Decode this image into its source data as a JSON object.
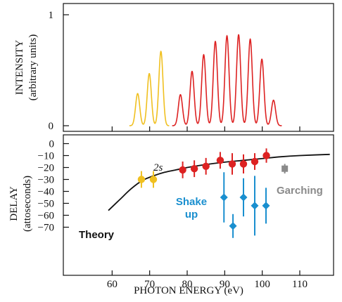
{
  "colors": {
    "yellow": "#f0c020",
    "red": "#dd2222",
    "blue": "#1a8fcf",
    "gray": "#8a8a8a",
    "black": "#111111"
  },
  "chart_data": [
    {
      "type": "line",
      "panel": "top",
      "ylabel": "INTENSITY",
      "ylabel2": "(arbitrary units)",
      "yticks": [
        "0",
        "1"
      ],
      "xlim": [
        47,
        119
      ],
      "ylim": [
        0,
        1
      ],
      "series": [
        {
          "color": "yellow",
          "peaks": [
            {
              "x": 66.8,
              "y": 0.29
            },
            {
              "x": 69.9,
              "y": 0.47
            },
            {
              "x": 73.0,
              "y": 0.67
            }
          ]
        },
        {
          "color": "red",
          "peaks": [
            {
              "x": 78.2,
              "y": 0.28
            },
            {
              "x": 81.3,
              "y": 0.49
            },
            {
              "x": 84.4,
              "y": 0.64
            },
            {
              "x": 87.5,
              "y": 0.76
            },
            {
              "x": 90.6,
              "y": 0.81
            },
            {
              "x": 93.7,
              "y": 0.82
            },
            {
              "x": 96.8,
              "y": 0.78
            },
            {
              "x": 99.9,
              "y": 0.6
            },
            {
              "x": 103.0,
              "y": 0.23
            }
          ]
        }
      ]
    },
    {
      "type": "scatter",
      "panel": "bottom",
      "xlabel": "PHOTON ENERGY (eV)",
      "ylabel": "DELAY",
      "ylabel2": "(attoseconds)",
      "xlim": [
        47,
        119
      ],
      "ylim": [
        -78,
        3
      ],
      "xticks": [
        "60",
        "70",
        "80",
        "90",
        "100",
        "110"
      ],
      "yticks": [
        "0",
        "−10",
        "−20",
        "−30",
        "−40",
        "−50",
        "−60",
        "−70"
      ],
      "theory_curve": [
        [
          59,
          -56
        ],
        [
          62,
          -47
        ],
        [
          65,
          -38
        ],
        [
          68,
          -31
        ],
        [
          71,
          -27
        ],
        [
          74,
          -24
        ],
        [
          77,
          -22
        ],
        [
          80,
          -20
        ],
        [
          85,
          -17.5
        ],
        [
          90,
          -15.5
        ],
        [
          95,
          -14
        ],
        [
          100,
          -12.5
        ],
        [
          105,
          -11
        ],
        [
          110,
          -10
        ],
        [
          118,
          -9
        ]
      ],
      "series": [
        {
          "color": "yellow",
          "marker": "circle",
          "points": [
            {
              "x": 67.8,
              "y": -30,
              "err": 7
            },
            {
              "x": 71.0,
              "y": -30,
              "err": 7
            }
          ]
        },
        {
          "color": "red",
          "marker": "circle",
          "label": "2s",
          "points": [
            {
              "x": 78.8,
              "y": -22,
              "err": 7
            },
            {
              "x": 81.9,
              "y": -21,
              "err": 7
            },
            {
              "x": 85.0,
              "y": -19,
              "err": 7
            },
            {
              "x": 88.8,
              "y": -14,
              "err": 7
            },
            {
              "x": 92.0,
              "y": -17,
              "err": 9
            },
            {
              "x": 95.0,
              "y": -17,
              "err": 8
            },
            {
              "x": 98.0,
              "y": -15,
              "err": 7
            },
            {
              "x": 101.1,
              "y": -10,
              "err": 6
            }
          ]
        },
        {
          "color": "blue",
          "marker": "diamond",
          "label": "Shake up",
          "points": [
            {
              "x": 89.8,
              "y": -45,
              "err": 21
            },
            {
              "x": 92.2,
              "y": -69,
              "err": 10
            },
            {
              "x": 95.0,
              "y": -45,
              "err": 16
            },
            {
              "x": 98.0,
              "y": -52,
              "err": 25
            },
            {
              "x": 101.0,
              "y": -52,
              "err": 15
            }
          ]
        },
        {
          "color": "gray",
          "marker": "square",
          "label": "Garching",
          "points": [
            {
              "x": 106.0,
              "y": -21,
              "err": 4
            }
          ]
        }
      ],
      "annotations": {
        "theory": "Theory",
        "two_s": "2s",
        "shake_line1": "Shake",
        "shake_line2": "up",
        "garching": "Garching"
      }
    }
  ]
}
